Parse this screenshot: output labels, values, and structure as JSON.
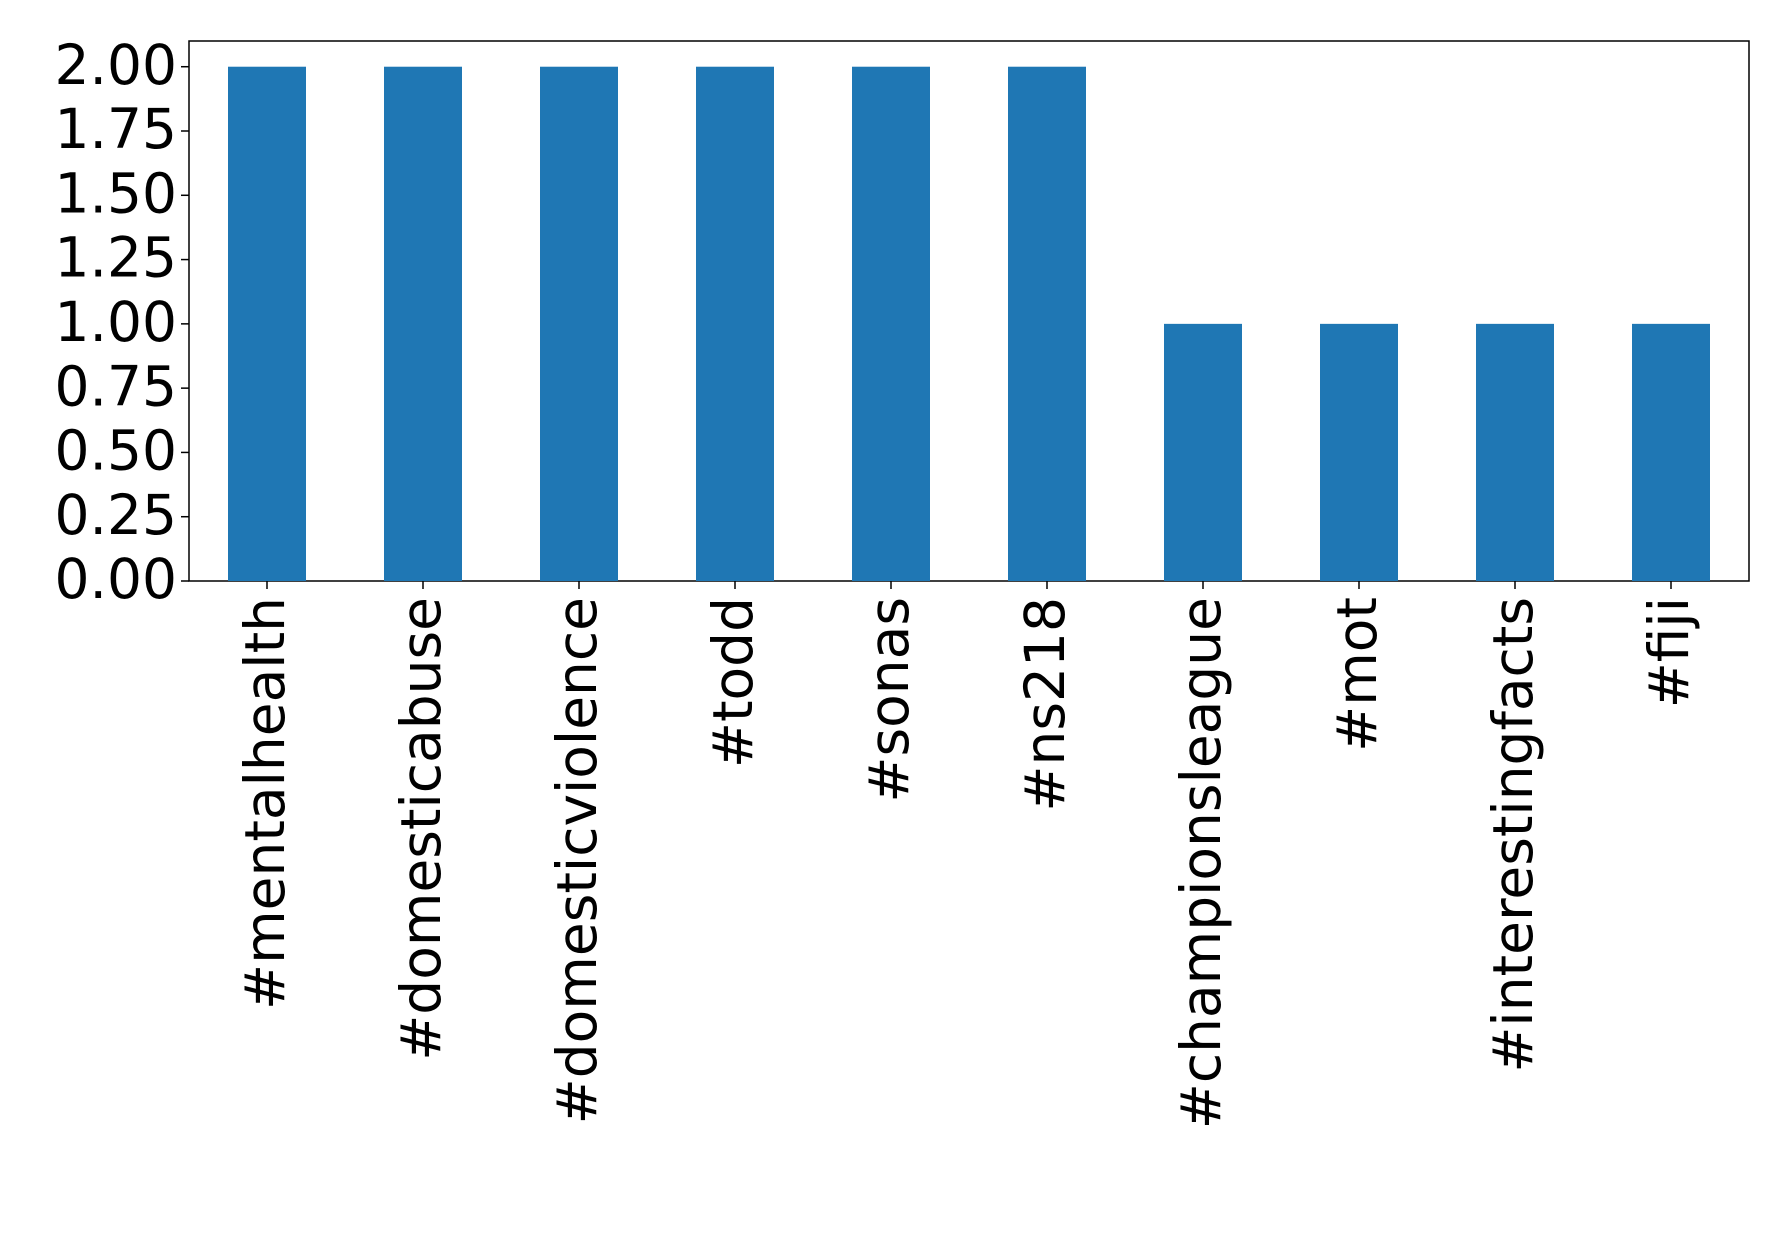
{
  "chart_data": {
    "type": "bar",
    "categories": [
      "#mentalhealth",
      "#domesticabuse",
      "#domesticviolence",
      "#todd",
      "#sonas",
      "#ns218",
      "#championsleague",
      "#mot",
      "#interestingfacts",
      "#fiji"
    ],
    "values": [
      2,
      2,
      2,
      2,
      2,
      2,
      1,
      1,
      1,
      1
    ],
    "color": "#1f77b4",
    "ylim": [
      0,
      2.1
    ],
    "yticks": [
      {
        "value": 0,
        "label": "0.00"
      },
      {
        "value": 0.25,
        "label": "0.25"
      },
      {
        "value": 0.5,
        "label": "0.50"
      },
      {
        "value": 0.75,
        "label": "0.75"
      },
      {
        "value": 1,
        "label": "1.00"
      },
      {
        "value": 1.25,
        "label": "1.25"
      },
      {
        "value": 1.5,
        "label": "1.50"
      },
      {
        "value": 1.75,
        "label": "1.75"
      },
      {
        "value": 2,
        "label": "2.00"
      }
    ],
    "grid": false
  }
}
